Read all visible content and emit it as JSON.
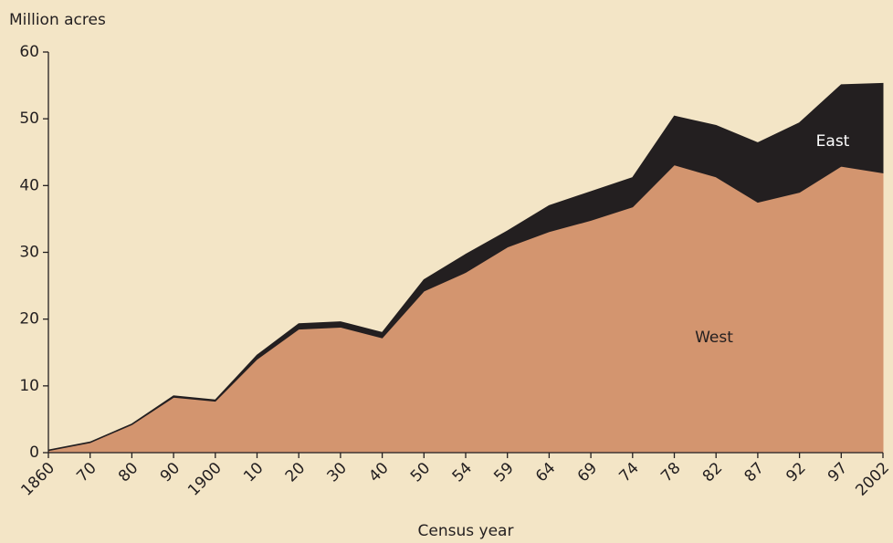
{
  "chart_data": {
    "type": "stacked_area",
    "y_axis_label": "Million acres",
    "x_axis_label": "Census year",
    "categories": [
      "1860",
      "70",
      "80",
      "90",
      "1900",
      "10",
      "20",
      "30",
      "40",
      "50",
      "54",
      "59",
      "64",
      "69",
      "74",
      "78",
      "82",
      "87",
      "92",
      "97",
      "2002"
    ],
    "series": [
      {
        "name": "West",
        "color": "#d3956f",
        "values": [
          0.3,
          1.5,
          4.2,
          8.3,
          7.7,
          14,
          18.5,
          18.8,
          17.2,
          24.2,
          27,
          30.8,
          33.1,
          34.8,
          36.8,
          43.1,
          41.3,
          37.5,
          39,
          42.9,
          41.9
        ]
      },
      {
        "name": "East",
        "color": "#231f20",
        "values": [
          0.1,
          0.1,
          0.1,
          0.2,
          0.2,
          0.6,
          0.8,
          0.8,
          0.8,
          1.7,
          2.7,
          2.4,
          3.9,
          4.3,
          4.4,
          7.3,
          7.7,
          8.9,
          10.4,
          12.2,
          13.4
        ]
      }
    ],
    "ylim": [
      0,
      60
    ],
    "yticks": [
      0,
      10,
      20,
      30,
      40,
      50,
      60
    ],
    "grid": false
  }
}
